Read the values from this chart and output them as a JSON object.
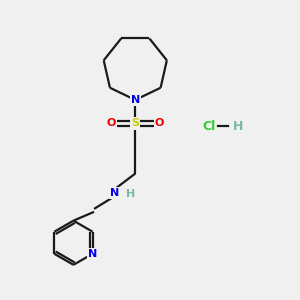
{
  "background_color": "#f0f0f0",
  "bond_color": "#1a1a1a",
  "atom_colors": {
    "N": "#0000ee",
    "S": "#cccc00",
    "O": "#ee0000",
    "H": "#7ab8a0",
    "Cl": "#33cc33"
  },
  "figsize": [
    3.0,
    3.0
  ],
  "dpi": 100,
  "xlim": [
    0,
    10
  ],
  "ylim": [
    0,
    10
  ]
}
